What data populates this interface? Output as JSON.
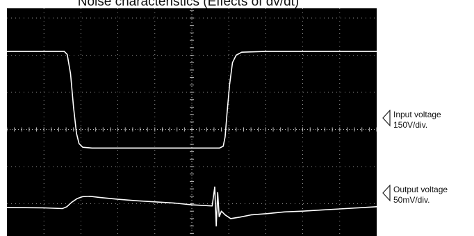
{
  "title": "Noise characteristics  (Effects of dv/dt)",
  "markers": {
    "input": {
      "line1": "Input voltage",
      "line2": "150V/div."
    },
    "output": {
      "line1": "Output voltage",
      "line2": "50mV/div."
    }
  },
  "chart_data": {
    "type": "line",
    "title": "Noise characteristics  (Effects of dv/dt)",
    "grid": true,
    "x_divisions": 10,
    "y_divisions": 8,
    "xlim": [
      0,
      10
    ],
    "ylim": [
      -4,
      4
    ],
    "colors": {
      "background": "#000000",
      "trace": "#ffffff",
      "grid": "#bdbdbd"
    },
    "series": [
      {
        "name": "Input voltage",
        "scale": "150V/div.",
        "x": [
          0,
          1.55,
          1.63,
          1.72,
          1.8,
          1.88,
          1.95,
          2.05,
          2.3,
          3.0,
          4.0,
          5.0,
          5.75,
          5.85,
          5.9,
          5.95,
          6.02,
          6.1,
          6.2,
          6.35,
          7.0,
          8.0,
          10
        ],
        "y": [
          2.1,
          2.1,
          2.02,
          1.5,
          0.6,
          -0.1,
          -0.38,
          -0.48,
          -0.5,
          -0.5,
          -0.5,
          -0.5,
          -0.5,
          -0.45,
          -0.2,
          0.4,
          1.2,
          1.8,
          2.0,
          2.08,
          2.1,
          2.1,
          2.1
        ]
      },
      {
        "name": "Output voltage",
        "scale": "50mV/div.",
        "x": [
          0,
          1.0,
          1.5,
          1.62,
          1.75,
          1.9,
          2.05,
          2.25,
          2.5,
          3.0,
          3.5,
          4.0,
          4.5,
          5.0,
          5.55,
          5.62,
          5.66,
          5.7,
          5.74,
          5.8,
          5.9,
          6.05,
          6.3,
          6.6,
          7.0,
          7.5,
          8.0,
          8.5,
          9.0,
          9.5,
          10
        ],
        "y": [
          -2.1,
          -2.11,
          -2.13,
          -2.08,
          -1.96,
          -1.86,
          -1.81,
          -1.8,
          -1.83,
          -1.88,
          -1.92,
          -1.95,
          -1.98,
          -2.03,
          -2.06,
          -1.55,
          -2.6,
          -1.7,
          -2.35,
          -2.2,
          -2.3,
          -2.4,
          -2.36,
          -2.3,
          -2.27,
          -2.22,
          -2.2,
          -2.17,
          -2.14,
          -2.11,
          -2.08
        ]
      }
    ]
  }
}
